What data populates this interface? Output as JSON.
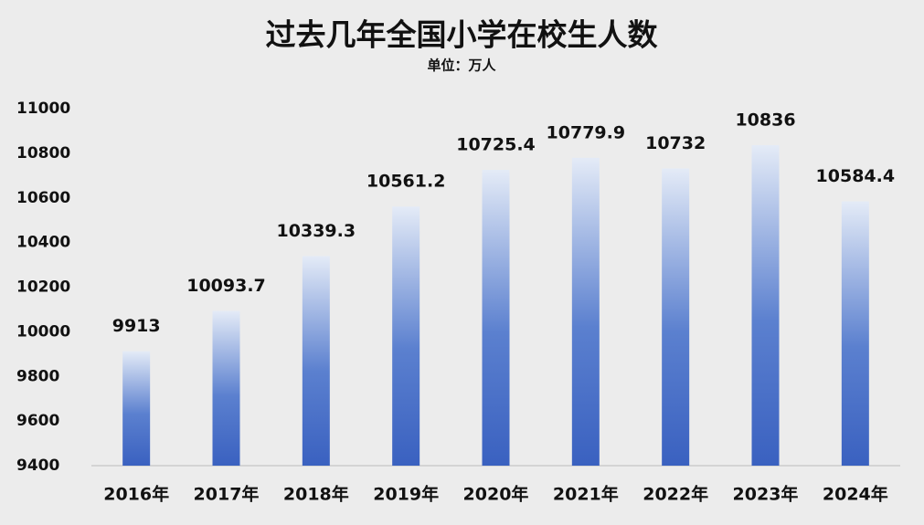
{
  "chart_data": {
    "type": "bar",
    "title": "过去几年全国小学在校生人数",
    "subtitle": "单位：万人",
    "categories": [
      "2016年",
      "2017年",
      "2018年",
      "2019年",
      "2020年",
      "2021年",
      "2022年",
      "2023年",
      "2024年"
    ],
    "values": [
      9913,
      10093.7,
      10339.3,
      10561.2,
      10725.4,
      10779.9,
      10732,
      10836,
      10584.4
    ],
    "color": "#3a61c0",
    "ylim": [
      9400,
      11000
    ],
    "yticks": [
      9400,
      9600,
      9800,
      10000,
      10200,
      10400,
      10600,
      10800,
      11000
    ],
    "grid": false
  }
}
